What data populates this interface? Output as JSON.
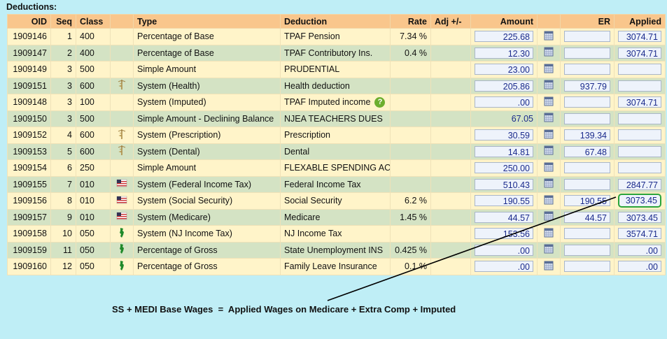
{
  "heading": "Deductions:",
  "table": {
    "columns": {
      "oid": "OID",
      "seq": "Seq",
      "class": "Class",
      "type": "Type",
      "deduction": "Deduction",
      "rate": "Rate",
      "adj": "Adj +/-",
      "amount": "Amount",
      "er": "ER",
      "applied": "Applied"
    },
    "rows": [
      {
        "oid": "1909146",
        "seq": "1",
        "class": "400",
        "icon": null,
        "type": "Percentage of Base",
        "deduction": "TPAF Pension",
        "rate": "7.34 %",
        "amount": "225.68",
        "er": null,
        "applied": "3074.71"
      },
      {
        "oid": "1909147",
        "seq": "2",
        "class": "400",
        "icon": null,
        "type": "Percentage of Base",
        "deduction": "TPAF Contributory Ins.",
        "rate": "0.4 %",
        "amount": "12.30",
        "er": null,
        "applied": "3074.71"
      },
      {
        "oid": "1909149",
        "seq": "3",
        "class": "500",
        "icon": null,
        "type": "Simple Amount",
        "deduction": "PRUDENTIAL",
        "rate": null,
        "amount": "23.00",
        "er": null,
        "applied": null
      },
      {
        "oid": "1909151",
        "seq": "3",
        "class": "600",
        "icon": "health",
        "type": "System (Health)",
        "deduction": "Health deduction",
        "rate": null,
        "amount": "205.86",
        "er": "937.79",
        "applied": null
      },
      {
        "oid": "1909148",
        "seq": "3",
        "class": "100",
        "icon": null,
        "type": "System (Imputed)",
        "deduction": "TPAF Imputed income",
        "help": "?",
        "rate": null,
        "amount": ".00",
        "er": null,
        "applied": "3074.71"
      },
      {
        "oid": "1909150",
        "seq": "3",
        "class": "500",
        "icon": null,
        "type": "Simple Amount - Declining Balance",
        "deduction": "NJEA TEACHERS DUES",
        "rate": null,
        "amount": "67.05",
        "amount_box": false,
        "er": null,
        "applied": null
      },
      {
        "oid": "1909152",
        "seq": "4",
        "class": "600",
        "icon": "health",
        "type": "System (Prescription)",
        "deduction": "Prescription",
        "rate": null,
        "amount": "30.59",
        "er": "139.34",
        "applied": null
      },
      {
        "oid": "1909153",
        "seq": "5",
        "class": "600",
        "icon": "health",
        "type": "System (Dental)",
        "deduction": "Dental",
        "rate": null,
        "amount": "14.81",
        "er": "67.48",
        "applied": null
      },
      {
        "oid": "1909154",
        "seq": "6",
        "class": "250",
        "icon": null,
        "type": "Simple Amount",
        "deduction": "FLEXABLE SPENDING AC",
        "rate": null,
        "amount": "250.00",
        "er": null,
        "applied": null
      },
      {
        "oid": "1909155",
        "seq": "7",
        "class": "010",
        "icon": "flag",
        "type": "System (Federal Income Tax)",
        "deduction": "Federal Income Tax",
        "rate": null,
        "amount": "510.43",
        "er": null,
        "applied": "2847.77"
      },
      {
        "oid": "1909156",
        "seq": "8",
        "class": "010",
        "icon": "flag",
        "type": "System (Social Security)",
        "deduction": "Social Security",
        "rate": "6.2 %",
        "amount": "190.55",
        "er": "190.55",
        "applied": "3073.45",
        "highlight": true
      },
      {
        "oid": "1909157",
        "seq": "9",
        "class": "010",
        "icon": "flag",
        "type": "System (Medicare)",
        "deduction": "Medicare",
        "rate": "1.45 %",
        "amount": "44.57",
        "er": "44.57",
        "applied": "3073.45"
      },
      {
        "oid": "1909158",
        "seq": "10",
        "class": "050",
        "icon": "nj",
        "type": "System (NJ Income Tax)",
        "deduction": "NJ Income Tax",
        "rate": null,
        "amount": "153.56",
        "er": null,
        "applied": "3574.71"
      },
      {
        "oid": "1909159",
        "seq": "11",
        "class": "050",
        "icon": "nj",
        "type": "Percentage of Gross",
        "deduction": "State Unemployment INS",
        "rate": "0.425 %",
        "amount": ".00",
        "er": null,
        "applied": ".00"
      },
      {
        "oid": "1909160",
        "seq": "12",
        "class": "050",
        "icon": "nj",
        "type": "Percentage of Gross",
        "deduction": "Family Leave Insurance",
        "rate": "0.1 %",
        "amount": ".00",
        "er": null,
        "applied": ".00"
      }
    ]
  },
  "annotation": "SS + MEDI Base Wages  =  Applied Wages on Medicare + Extra Comp + Imputed"
}
